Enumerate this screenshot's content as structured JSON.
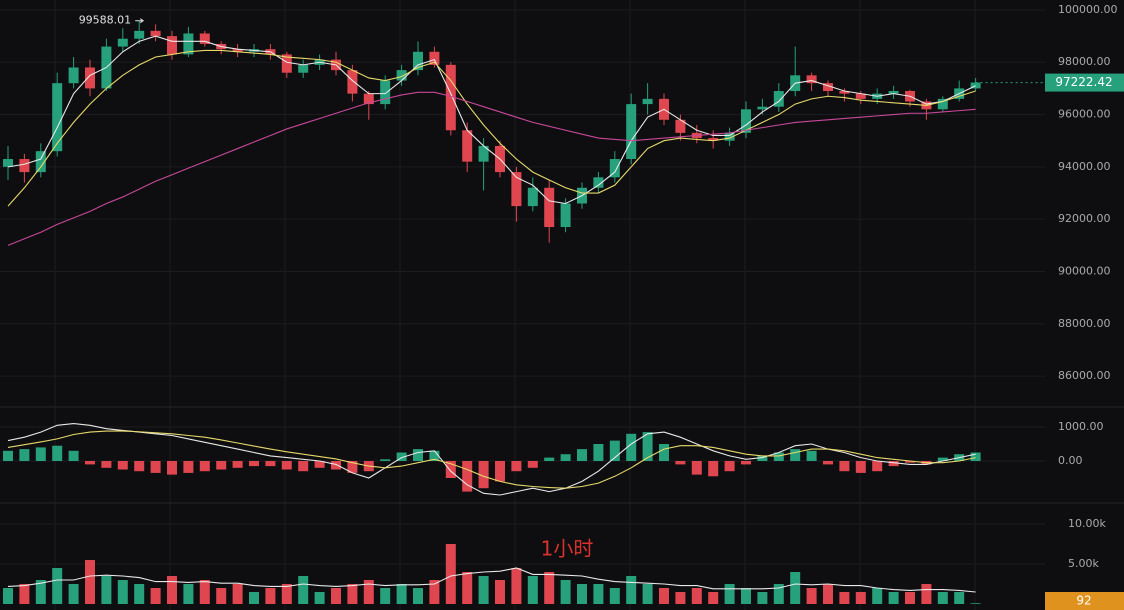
{
  "chart_data": {
    "type": "candlestick",
    "up_color": "#26a17b",
    "down_color": "#e0464f",
    "open": [
      94000,
      94300,
      93800,
      94600,
      97200,
      97800,
      97000,
      98600,
      98900,
      99200,
      99000,
      98300,
      99100,
      98700,
      98500,
      98400,
      98500,
      98300,
      97600,
      97900,
      98100,
      97700,
      96800,
      96400,
      97300,
      97700,
      98400,
      97900,
      95400,
      94200,
      94800,
      93800,
      92500,
      93200,
      91700,
      92600,
      93200,
      93600,
      94300,
      96400,
      96600,
      95800,
      95300,
      95100,
      95000,
      95300,
      96200,
      96300,
      96900,
      97500,
      97200,
      96900,
      96800,
      96600,
      96800,
      96900,
      96500,
      96200,
      96600,
      97000
    ],
    "high": [
      94800,
      94500,
      94900,
      97600,
      98200,
      98100,
      98900,
      99300,
      99588.01,
      99450,
      99200,
      99350,
      99200,
      98800,
      98700,
      98700,
      98700,
      98400,
      98100,
      98300,
      98400,
      97900,
      96900,
      97500,
      97900,
      98800,
      98600,
      98000,
      95700,
      95100,
      95000,
      94000,
      93600,
      93500,
      92800,
      93400,
      93800,
      94600,
      96800,
      97200,
      96800,
      96000,
      95600,
      95400,
      95500,
      96500,
      96600,
      97200,
      98600,
      97600,
      97300,
      97000,
      96900,
      97000,
      97100,
      96950,
      96600,
      96700,
      97300,
      97400
    ],
    "low": [
      93500,
      93400,
      93600,
      94400,
      97000,
      96700,
      96900,
      98400,
      98700,
      98800,
      98100,
      98200,
      98600,
      98300,
      98200,
      98200,
      98100,
      97400,
      97400,
      97700,
      97500,
      96500,
      95800,
      96200,
      97100,
      97500,
      97800,
      95200,
      93800,
      93100,
      93600,
      91900,
      92300,
      91100,
      91500,
      92400,
      93000,
      93400,
      94100,
      96000,
      95600,
      95000,
      94900,
      94700,
      94800,
      95100,
      96000,
      96100,
      96700,
      96900,
      96700,
      96500,
      96400,
      96400,
      96600,
      96300,
      95800,
      96100,
      96500,
      96900
    ],
    "close": [
      94300,
      93800,
      94600,
      97200,
      97800,
      97000,
      98600,
      98900,
      99200,
      99000,
      98300,
      99100,
      98700,
      98500,
      98400,
      98500,
      98300,
      97600,
      97900,
      98100,
      97700,
      96800,
      96400,
      97300,
      97700,
      98400,
      97900,
      95400,
      94200,
      94800,
      93800,
      92500,
      93200,
      91700,
      92600,
      93200,
      93600,
      94300,
      96400,
      96600,
      95800,
      95300,
      95100,
      95000,
      95300,
      96200,
      96300,
      96900,
      97500,
      97200,
      96900,
      96800,
      96600,
      96800,
      96900,
      96500,
      96200,
      96600,
      97000,
      97222.42
    ],
    "ylim": [
      84895,
      100380
    ],
    "yticks": [
      {
        "value": 86000,
        "label": "86000.00"
      },
      {
        "value": 88000,
        "label": "88000.00"
      },
      {
        "value": 90000,
        "label": "90000.00"
      },
      {
        "value": 92000,
        "label": "92000.00"
      },
      {
        "value": 94000,
        "label": "94000.00"
      },
      {
        "value": 96000,
        "label": "96000.00"
      },
      {
        "value": 98000,
        "label": "98000.00"
      },
      {
        "value": 100000,
        "label": "100000.00"
      }
    ],
    "lines": [
      {
        "color": "#e8e8e8",
        "values": [
          94000,
          94100,
          94300,
          95500,
          96800,
          97500,
          97800,
          98400,
          98800,
          99000,
          98800,
          98800,
          98800,
          98600,
          98500,
          98450,
          98400,
          98000,
          97900,
          98000,
          97900,
          97300,
          96800,
          96800,
          97300,
          97900,
          98100,
          96800,
          95400,
          94800,
          94300,
          93600,
          93300,
          92700,
          92600,
          92900,
          93300,
          93800,
          95000,
          95900,
          96200,
          95800,
          95400,
          95200,
          95200,
          95600,
          96100,
          96500,
          97200,
          97300,
          97100,
          96900,
          96800,
          96700,
          96800,
          96700,
          96400,
          96500,
          96800,
          97100
        ]
      },
      {
        "color": "#e6d96a",
        "values": [
          92500,
          93200,
          94000,
          94900,
          95700,
          96400,
          97000,
          97500,
          97900,
          98200,
          98300,
          98400,
          98450,
          98450,
          98400,
          98350,
          98300,
          98200,
          98150,
          98100,
          98000,
          97700,
          97400,
          97300,
          97450,
          97800,
          98000,
          97300,
          96400,
          95600,
          94900,
          94300,
          93800,
          93500,
          93200,
          93000,
          93000,
          93300,
          94000,
          94700,
          95000,
          95100,
          95050,
          95000,
          95100,
          95400,
          95700,
          96000,
          96400,
          96600,
          96700,
          96650,
          96550,
          96500,
          96450,
          96400,
          96350,
          96500,
          96700,
          96900
        ]
      },
      {
        "color": "#c8489a",
        "values": [
          91000,
          91250,
          91500,
          91800,
          92050,
          92300,
          92600,
          92850,
          93150,
          93450,
          93700,
          93950,
          94200,
          94450,
          94700,
          94950,
          95200,
          95450,
          95650,
          95850,
          96050,
          96250,
          96450,
          96600,
          96750,
          96850,
          96850,
          96700,
          96500,
          96300,
          96100,
          95900,
          95700,
          95550,
          95400,
          95250,
          95100,
          95050,
          95000,
          95050,
          95100,
          95150,
          95200,
          95250,
          95300,
          95400,
          95500,
          95600,
          95700,
          95750,
          95800,
          95850,
          95900,
          95950,
          96000,
          96050,
          96050,
          96100,
          96150,
          96200
        ]
      }
    ],
    "macd": {
      "ylim": [
        -1147,
        1500
      ],
      "yticks": [
        {
          "value": 0,
          "label": "0.00"
        },
        {
          "value": 1000,
          "label": "1000.00"
        }
      ],
      "histogram": [
        300,
        350,
        400,
        450,
        300,
        -100,
        -200,
        -250,
        -300,
        -350,
        -400,
        -350,
        -300,
        -250,
        -200,
        -150,
        -150,
        -250,
        -300,
        -200,
        -250,
        -350,
        -300,
        50,
        250,
        350,
        300,
        -500,
        -900,
        -800,
        -600,
        -300,
        -200,
        100,
        200,
        350,
        500,
        600,
        800,
        850,
        500,
        -100,
        -400,
        -450,
        -300,
        -100,
        150,
        250,
        350,
        300,
        -100,
        -300,
        -350,
        -300,
        -150,
        -50,
        -100,
        100,
        200,
        250
      ],
      "lines": [
        {
          "color": "#e8e8e8",
          "values": [
            600,
            700,
            850,
            1050,
            1100,
            1050,
            950,
            900,
            850,
            800,
            750,
            650,
            550,
            450,
            350,
            250,
            150,
            100,
            50,
            0,
            -100,
            -350,
            -500,
            -200,
            100,
            250,
            300,
            -300,
            -700,
            -950,
            -1000,
            -900,
            -800,
            -900,
            -800,
            -600,
            -300,
            100,
            500,
            800,
            850,
            700,
            500,
            300,
            150,
            50,
            100,
            250,
            450,
            500,
            350,
            250,
            100,
            0,
            -50,
            -100,
            -100,
            0,
            100,
            200
          ]
        },
        {
          "color": "#e6d96a",
          "values": [
            400,
            480,
            560,
            650,
            780,
            850,
            880,
            880,
            860,
            830,
            800,
            750,
            700,
            620,
            530,
            440,
            350,
            270,
            200,
            130,
            60,
            -50,
            -150,
            -200,
            -150,
            -50,
            50,
            -80,
            -250,
            -450,
            -600,
            -700,
            -750,
            -780,
            -800,
            -750,
            -650,
            -450,
            -200,
            100,
            350,
            450,
            450,
            400,
            300,
            200,
            150,
            150,
            250,
            350,
            350,
            300,
            200,
            100,
            50,
            0,
            -50,
            -50,
            0,
            100
          ]
        }
      ]
    },
    "volume": {
      "ylim": [
        0,
        12375
      ],
      "yticks": [
        {
          "value": 5000,
          "label": "5.00k"
        },
        {
          "value": 10000,
          "label": "10.00k"
        }
      ],
      "values": [
        2000,
        2500,
        3000,
        4500,
        2500,
        5500,
        3500,
        3000,
        2500,
        2000,
        3500,
        2500,
        3000,
        2000,
        2500,
        1500,
        2000,
        2500,
        3500,
        1500,
        2000,
        2500,
        3000,
        2000,
        2500,
        2000,
        3000,
        7500,
        4000,
        3500,
        3000,
        4500,
        3500,
        4000,
        3000,
        2500,
        2500,
        2000,
        3500,
        2500,
        2000,
        1500,
        2000,
        1500,
        2500,
        2000,
        1500,
        2500,
        4000,
        2000,
        2500,
        1500,
        1500,
        2000,
        1500,
        1500,
        2500,
        1500,
        1500,
        92
      ],
      "lines": [
        {
          "color": "#e8e8e8",
          "values": [
            2200,
            2300,
            2600,
            3000,
            3000,
            3500,
            3600,
            3500,
            3300,
            2800,
            2800,
            2700,
            2800,
            2600,
            2600,
            2300,
            2200,
            2200,
            2500,
            2300,
            2200,
            2300,
            2500,
            2300,
            2400,
            2400,
            2500,
            3500,
            3800,
            4000,
            4100,
            4500,
            3700,
            3700,
            3600,
            3500,
            3100,
            2800,
            2700,
            2600,
            2500,
            2300,
            2300,
            1900,
            1900,
            1900,
            1900,
            2000,
            2500,
            2400,
            2500,
            2300,
            2300,
            2000,
            1800,
            1700,
            1800,
            1800,
            1700,
            1500
          ]
        }
      ]
    },
    "watermark": "1小时"
  }
}
